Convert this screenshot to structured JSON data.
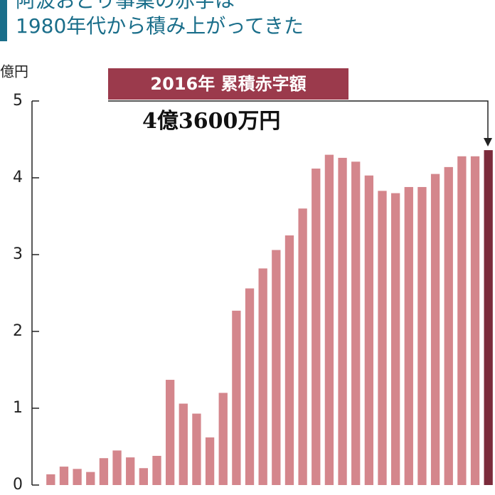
{
  "chart_data": {
    "type": "bar",
    "title": "阿波おどり事業の赤字は",
    "subtitle": "1980年代から積み上がってきた",
    "y_label": "億円",
    "annotation": {
      "title": "2016年 累積赤字額",
      "text": "4億3600万円"
    },
    "categories": [
      null,
      null,
      null,
      null,
      null,
      null,
      null,
      null,
      null,
      null,
      null,
      null,
      null,
      null,
      null,
      null,
      null,
      null,
      null,
      null,
      null,
      null,
      null,
      null,
      null,
      null,
      null,
      null,
      null,
      null,
      null,
      null,
      null,
      null
    ],
    "values": [
      0.14,
      0.24,
      0.21,
      0.17,
      0.35,
      0.45,
      0.36,
      0.22,
      0.38,
      1.37,
      1.06,
      0.93,
      0.62,
      1.2,
      2.27,
      2.56,
      2.82,
      3.06,
      3.25,
      3.6,
      4.12,
      4.3,
      4.26,
      4.21,
      4.03,
      3.83,
      3.8,
      3.88,
      3.88,
      4.05,
      4.14,
      4.28,
      4.28,
      4.36
    ],
    "colors": [
      "#d4868c",
      "#d4868c",
      "#d4868c",
      "#d4868c",
      "#d4868c",
      "#d4868c",
      "#d4868c",
      "#d4868c",
      "#d4868c",
      "#d4868c",
      "#d4868c",
      "#d4868c",
      "#d4868c",
      "#d4868c",
      "#d4868c",
      "#d4868c",
      "#d4868c",
      "#d4868c",
      "#d4868c",
      "#d4868c",
      "#d4868c",
      "#d4868c",
      "#d4868c",
      "#d4868c",
      "#d4868c",
      "#d4868c",
      "#d4868c",
      "#d4868c",
      "#d4868c",
      "#d4868c",
      "#d4868c",
      "#d4868c",
      "#d4868c",
      "#7b2b3b"
    ],
    "ylim": [
      0,
      5
    ],
    "yticks": [
      0,
      1,
      2,
      3,
      4,
      5
    ]
  }
}
